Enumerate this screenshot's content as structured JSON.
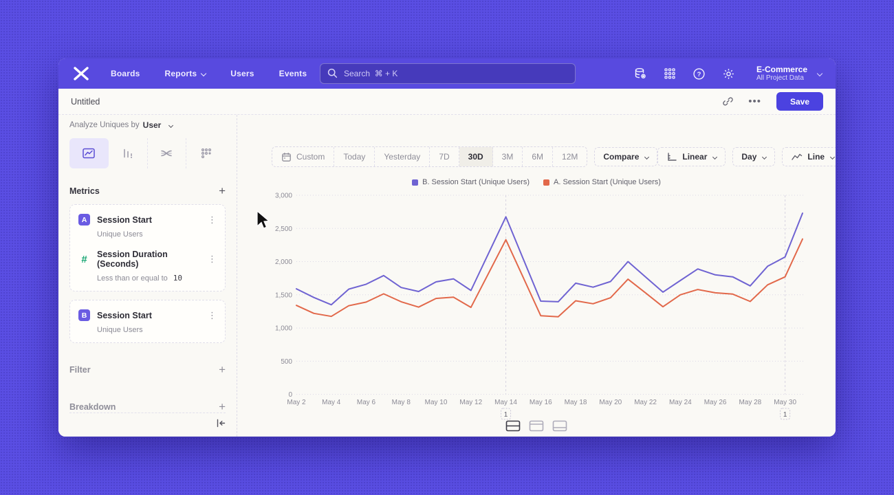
{
  "nav": {
    "links": [
      {
        "label": "Boards",
        "chevron": false
      },
      {
        "label": "Reports",
        "chevron": true
      },
      {
        "label": "Users",
        "chevron": false
      },
      {
        "label": "Events",
        "chevron": false
      }
    ],
    "search_placeholder": "Search  ⌘ + K",
    "project_name": "E-Commerce",
    "project_scope": "All Project Data"
  },
  "header": {
    "title": "Untitled",
    "save_label": "Save"
  },
  "sidebar": {
    "analyze_prefix": "Analyze Uniques by",
    "analyze_value": "User",
    "metrics_title": "Metrics",
    "metric_items": [
      {
        "badge": "A",
        "badge_color": "#6a5be2",
        "badge_style": "solid",
        "title": "Session Start",
        "subtitle": "Unique Users",
        "subtitle_value": ""
      },
      {
        "badge": "#",
        "badge_color": "#17a673",
        "badge_style": "text",
        "title": "Session Duration (Seconds)",
        "subtitle": "Less than or equal to",
        "subtitle_value": "10"
      },
      {
        "badge": "B",
        "badge_color": "#6a5be2",
        "badge_style": "solid",
        "title": "Session Start",
        "subtitle": "Unique Users",
        "subtitle_value": ""
      }
    ],
    "filter_title": "Filter",
    "breakdown_title": "Breakdown"
  },
  "controls": {
    "ranges": [
      {
        "label": "Custom",
        "icon": "calendar",
        "active": false
      },
      {
        "label": "Today",
        "active": false
      },
      {
        "label": "Yesterday",
        "active": false
      },
      {
        "label": "7D",
        "active": false
      },
      {
        "label": "30D",
        "active": true
      },
      {
        "label": "3M",
        "active": false
      },
      {
        "label": "6M",
        "active": false
      },
      {
        "label": "12M",
        "active": false
      }
    ],
    "compare_label": "Compare",
    "scale_label": "Linear",
    "interval_label": "Day",
    "chart_type_label": "Line"
  },
  "chart_data": {
    "type": "line",
    "x_labels": [
      "May 2",
      "May 3",
      "May 4",
      "May 5",
      "May 6",
      "May 7",
      "May 8",
      "May 9",
      "May 10",
      "May 11",
      "May 12",
      "May 13",
      "May 14",
      "May 15",
      "May 16",
      "May 17",
      "May 18",
      "May 19",
      "May 20",
      "May 21",
      "May 22",
      "May 23",
      "May 24",
      "May 25",
      "May 26",
      "May 27",
      "May 28",
      "May 29",
      "May 30",
      "May 31"
    ],
    "tick_every": 2,
    "ylim": [
      0,
      3000
    ],
    "yticks": [
      0,
      500,
      1000,
      1500,
      2000,
      2500,
      3000
    ],
    "grid": "horizontal-dotted",
    "legend_position": "top-center",
    "series": [
      {
        "name": "B. Session Start (Unique Users)",
        "color": "#6f63d2",
        "values": [
          1590,
          1460,
          1350,
          1585,
          1660,
          1790,
          1610,
          1550,
          1695,
          1740,
          1565,
          2120,
          2675,
          2040,
          1405,
          1395,
          1675,
          1615,
          1700,
          2000,
          1770,
          1540,
          1715,
          1890,
          1800,
          1770,
          1635,
          1930,
          2070,
          2730
        ]
      },
      {
        "name": "A. Session Start (Unique Users)",
        "color": "#e2684a",
        "values": [
          1340,
          1220,
          1175,
          1335,
          1390,
          1515,
          1395,
          1315,
          1445,
          1465,
          1310,
          1820,
          2330,
          1760,
          1185,
          1170,
          1410,
          1365,
          1455,
          1735,
          1530,
          1320,
          1500,
          1580,
          1530,
          1510,
          1400,
          1650,
          1770,
          2340
        ]
      }
    ],
    "annotations": [
      {
        "index": 12,
        "label": "1"
      },
      {
        "index": 28,
        "label": "1"
      }
    ]
  },
  "footer": {
    "layouts": [
      "split",
      "chart-top",
      "table-bottom"
    ],
    "active_layout": "split"
  }
}
